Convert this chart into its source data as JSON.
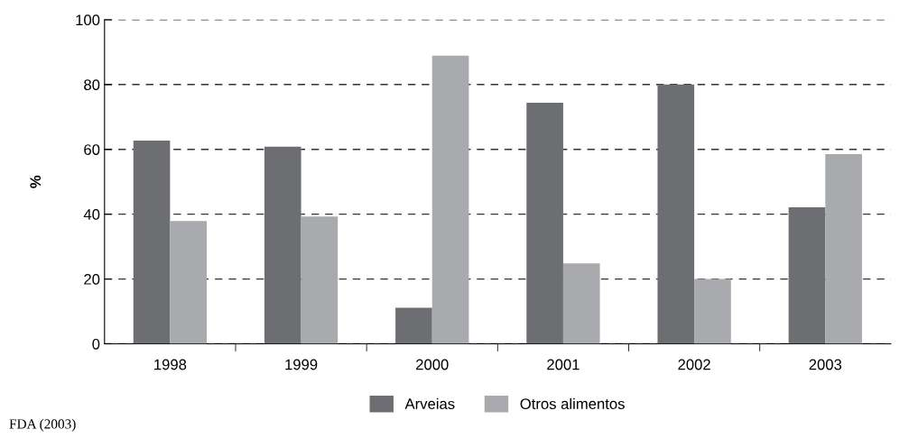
{
  "chart_data": {
    "type": "bar",
    "ylabel": "%",
    "categories": [
      "1998",
      "1999",
      "2000",
      "2001",
      "2002",
      "2003"
    ],
    "series": [
      {
        "name": "Arveias",
        "color": "#6d6e72",
        "values": [
          62.7,
          60.8,
          11.1,
          74.4,
          80.0,
          42.1
        ]
      },
      {
        "name": "Otros alimentos",
        "color": "#a9aaad",
        "values": [
          37.9,
          39.3,
          88.9,
          24.8,
          20.0,
          58.5
        ]
      }
    ],
    "ylim": [
      0,
      100
    ],
    "yticks": [
      0,
      20,
      40,
      60,
      80,
      100
    ],
    "grid": "y",
    "legend": "bottom",
    "annotations": [
      "FDA (2003)"
    ]
  }
}
